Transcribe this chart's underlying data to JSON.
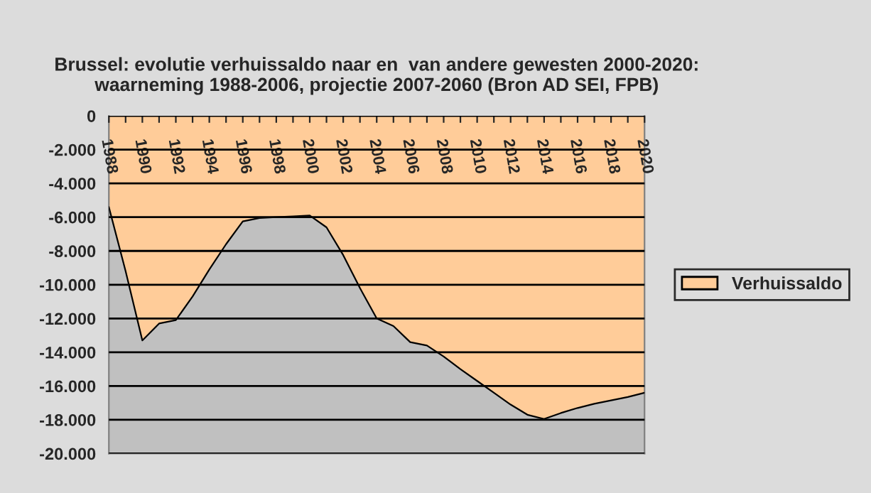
{
  "chart_data": {
    "type": "area",
    "title": "Brussel: evolutie verhuissaldo naar en  van andere gewesten 2000-2020: waarneming 1988-2006, projectie 2007-2060 (Bron AD SEI, FPB)",
    "categories": [
      "1988",
      null,
      "1990",
      null,
      "1992",
      null,
      "1994",
      null,
      "1996",
      null,
      "1998",
      null,
      "2000",
      null,
      "2002",
      null,
      "2004",
      null,
      "2006",
      null,
      "2008",
      null,
      "2010",
      null,
      "2012",
      null,
      "2014",
      null,
      "2016",
      null,
      "2018",
      null,
      "2020"
    ],
    "series": [
      {
        "name": "Verhuissaldo",
        "color": "#ffcc99",
        "values": [
          -5400,
          -9200,
          -13300,
          -12300,
          -12100,
          -10700,
          -9100,
          -7600,
          -6250,
          -6050,
          -6000,
          -5950,
          -5900,
          -6600,
          -8250,
          -10200,
          -12000,
          -12450,
          -13400,
          -13600,
          -14250,
          -15000,
          -15700,
          -16400,
          -17100,
          -17700,
          -17950,
          -17600,
          -17300,
          -17050,
          -16850,
          -16650,
          -16400
        ]
      }
    ],
    "ylim": [
      -20000,
      0
    ],
    "yticks": [
      {
        "value": -20000,
        "label": "-20.000"
      },
      {
        "value": -18000,
        "label": "-18.000"
      },
      {
        "value": -16000,
        "label": "-16.000"
      },
      {
        "value": -14000,
        "label": "-14.000"
      },
      {
        "value": -12000,
        "label": "-12.000"
      },
      {
        "value": -10000,
        "label": "-10.000"
      },
      {
        "value": -8000,
        "label": "-8.000"
      },
      {
        "value": -6000,
        "label": "-6.000"
      },
      {
        "value": -4000,
        "label": "-4.000"
      },
      {
        "value": -2000,
        "label": "-2.000"
      },
      0
    ],
    "grid": "y",
    "legend": "right"
  }
}
